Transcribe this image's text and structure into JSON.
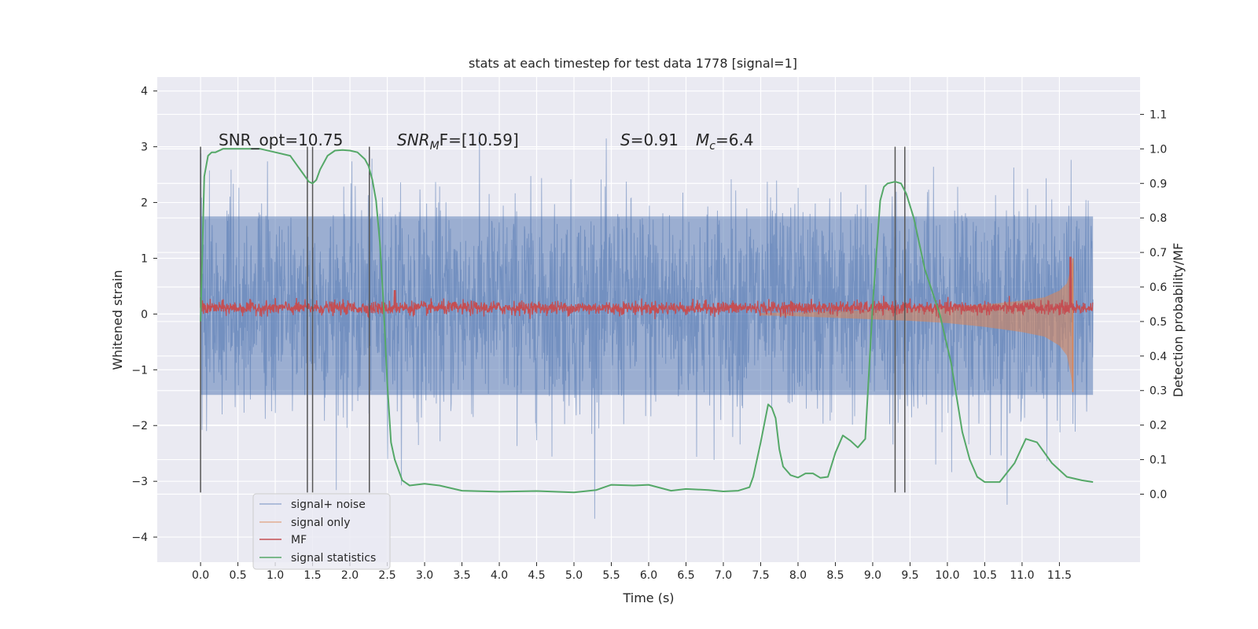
{
  "chart_data": {
    "type": "line",
    "title": "stats at each timestep for test data 1778 [signal=1]",
    "xlabel": "Time (s)",
    "ylabel": "Whitened strain",
    "y2label": "Detection probability/MF",
    "xlim": [
      -0.58,
      12.58
    ],
    "ylim": [
      -4.45,
      4.25
    ],
    "y2lim": [
      -0.197,
      1.208
    ],
    "x_ticks": [
      0.0,
      0.5,
      1.0,
      1.5,
      2.0,
      2.5,
      3.0,
      3.5,
      4.0,
      4.5,
      5.0,
      5.5,
      6.0,
      6.5,
      7.0,
      7.5,
      8.0,
      8.5,
      9.0,
      9.5,
      10.0,
      10.5,
      11.0,
      11.5
    ],
    "x_tick_labels": [
      "0.0",
      "0.5",
      "1.0",
      "1.5",
      "2.0",
      "2.5",
      "3.0",
      "3.5",
      "4.0",
      "4.5",
      "5.0",
      "5.5",
      "6.0",
      "6.5",
      "7.0",
      "7.5",
      "8.0",
      "8.5",
      "9.0",
      "9.5",
      "10.0",
      "10.5",
      "11.0",
      "11.5"
    ],
    "y_ticks": [
      -4,
      -3,
      -2,
      -1,
      0,
      1,
      2,
      3,
      4
    ],
    "y_tick_labels": [
      "−4",
      "−3",
      "−2",
      "−1",
      "0",
      "1",
      "2",
      "3",
      "4"
    ],
    "y2_ticks": [
      0.0,
      0.1,
      0.2,
      0.3,
      0.4,
      0.5,
      0.6,
      0.7,
      0.8,
      0.9,
      1.0,
      1.1
    ],
    "y2_tick_labels": [
      "0.0",
      "0.1",
      "0.2",
      "0.3",
      "0.4",
      "0.5",
      "0.6",
      "0.7",
      "0.8",
      "0.9",
      "1.0",
      "1.1"
    ],
    "grid": true,
    "legend_position": "lower-left",
    "annotations": {
      "snr_opt": "SNR_opt=10.75",
      "snr_mf_label": "SNR",
      "snr_mf_sub": "M",
      "snr_mf_rest": "F=[10.59]",
      "s_label": "S",
      "s_value": "=0.91",
      "mc_label": "M",
      "mc_sub": "c",
      "mc_value": "=6.4"
    },
    "series": [
      {
        "name": "signal+ noise",
        "color": "#4c72b0",
        "x_range": [
          0.0,
          11.95
        ],
        "typical_range": [
          -1.45,
          1.75
        ],
        "extremes": [
          -4.0,
          3.9
        ]
      },
      {
        "name": "signal only",
        "color": "#dd8452",
        "envelope_x": [
          7.5,
          8.0,
          8.5,
          9.0,
          9.5,
          10.0,
          10.5,
          11.0,
          11.3,
          11.5,
          11.6,
          11.65,
          11.68
        ],
        "envelope_y": [
          0.02,
          0.03,
          0.05,
          0.07,
          0.09,
          0.12,
          0.17,
          0.24,
          0.3,
          0.42,
          0.55,
          0.8,
          1.0
        ]
      },
      {
        "name": "MF",
        "color": "#c44e52",
        "x_range": [
          0.0,
          11.95
        ],
        "baseline": 0.11,
        "peaks": [
          [
            0.0,
            0.3
          ],
          [
            2.6,
            0.42
          ],
          [
            11.65,
            1.02
          ]
        ]
      },
      {
        "name": "signal statistics",
        "color": "#55a868",
        "x": [
          0.0,
          0.05,
          0.1,
          0.15,
          0.2,
          0.3,
          0.5,
          0.8,
          1.0,
          1.2,
          1.3,
          1.4,
          1.45,
          1.5,
          1.55,
          1.6,
          1.7,
          1.8,
          1.9,
          2.0,
          2.1,
          2.2,
          2.25,
          2.3,
          2.35,
          2.4,
          2.45,
          2.5,
          2.55,
          2.6,
          2.7,
          2.8,
          3.0,
          3.2,
          3.5,
          4.0,
          4.5,
          5.0,
          5.3,
          5.5,
          5.8,
          6.0,
          6.3,
          6.5,
          6.8,
          7.0,
          7.2,
          7.35,
          7.4,
          7.5,
          7.6,
          7.65,
          7.7,
          7.75,
          7.8,
          7.9,
          8.0,
          8.1,
          8.2,
          8.3,
          8.4,
          8.5,
          8.6,
          8.7,
          8.8,
          8.9,
          9.0,
          9.1,
          9.15,
          9.2,
          9.3,
          9.38,
          9.45,
          9.55,
          9.7,
          9.9,
          10.05,
          10.2,
          10.3,
          10.4,
          10.5,
          10.7,
          10.9,
          11.05,
          11.2,
          11.4,
          11.6,
          11.8,
          11.95
        ],
        "y": [
          0.5,
          0.92,
          0.98,
          0.99,
          0.99,
          1.0,
          1.0,
          1.0,
          0.99,
          0.98,
          0.95,
          0.92,
          0.905,
          0.9,
          0.91,
          0.94,
          0.98,
          0.995,
          0.997,
          0.995,
          0.99,
          0.97,
          0.95,
          0.91,
          0.85,
          0.73,
          0.55,
          0.32,
          0.15,
          0.1,
          0.04,
          0.025,
          0.03,
          0.025,
          0.01,
          0.007,
          0.009,
          0.005,
          0.012,
          0.027,
          0.025,
          0.027,
          0.01,
          0.015,
          0.012,
          0.008,
          0.01,
          0.02,
          0.05,
          0.15,
          0.26,
          0.25,
          0.22,
          0.13,
          0.08,
          0.055,
          0.048,
          0.06,
          0.06,
          0.047,
          0.05,
          0.12,
          0.17,
          0.155,
          0.135,
          0.16,
          0.55,
          0.85,
          0.89,
          0.9,
          0.905,
          0.9,
          0.87,
          0.8,
          0.65,
          0.52,
          0.38,
          0.18,
          0.1,
          0.05,
          0.035,
          0.035,
          0.09,
          0.16,
          0.15,
          0.09,
          0.05,
          0.04,
          0.035
        ]
      }
    ],
    "vlines": [
      {
        "x": 0.0,
        "y0": -3.2,
        "y1": 3.0
      },
      {
        "x": 1.43,
        "y0": -3.2,
        "y1": 3.0
      },
      {
        "x": 1.5,
        "y0": -3.2,
        "y1": 3.0
      },
      {
        "x": 2.26,
        "y0": -3.2,
        "y1": 3.0
      },
      {
        "x": 9.3,
        "y0": -3.2,
        "y1": 3.0
      },
      {
        "x": 9.43,
        "y0": -3.2,
        "y1": 3.0
      }
    ]
  }
}
